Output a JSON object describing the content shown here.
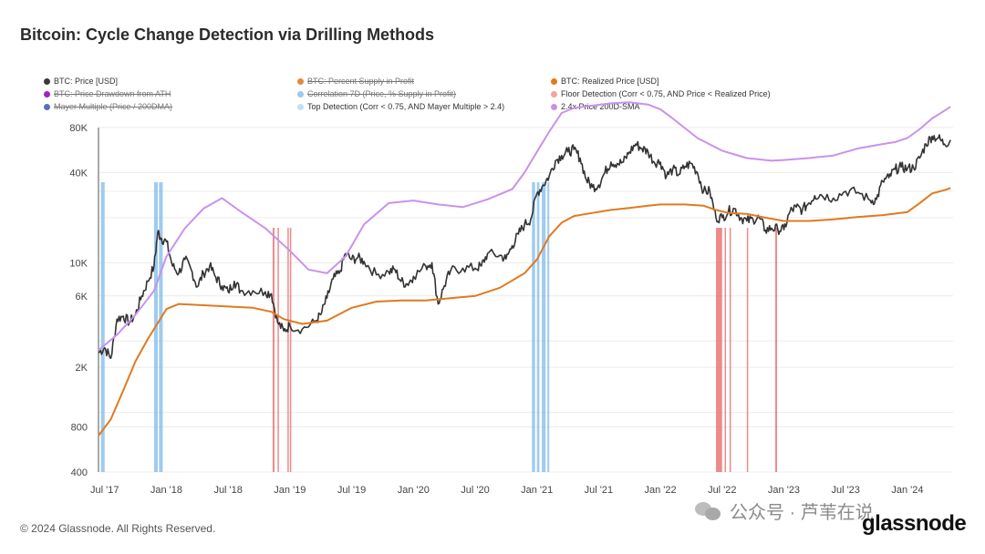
{
  "title": "Bitcoin: Cycle Change Detection via Drilling Methods",
  "footer": "© 2024 Glassnode. All Rights Reserved.",
  "watermark_text": "公众号 · 芦苇在说",
  "brand": "glassnode",
  "legend": [
    {
      "label": "BTC: Price [USD]",
      "color": "#3a3a3a",
      "enabled": true
    },
    {
      "label": "BTC: Percent Supply in Profit",
      "color": "#e08a3a",
      "enabled": false
    },
    {
      "label": "BTC: Realized Price [USD]",
      "color": "#e07a1f",
      "enabled": true
    },
    {
      "label": "BTC: Price Drawdown from ATH",
      "color": "#a020c8",
      "enabled": false
    },
    {
      "label": "Correlation 7D (Price, % Supply in Profit)",
      "color": "#9ec8ee",
      "enabled": false
    },
    {
      "label": "Floor Detection (Corr < 0.75, AND Price < Realized Price)",
      "color": "#f2a3a3",
      "enabled": true
    },
    {
      "label": "Mayer Multiple (Price / 200DMA)",
      "color": "#5b6fbe",
      "enabled": false
    },
    {
      "label": "Top Detection (Corr < 0.75, AND Mayer Multiple > 2.4)",
      "color": "#bfe0f8",
      "enabled": true
    },
    {
      "label": "2.4x Price 200D-SMA",
      "color": "#c793ea",
      "enabled": true
    }
  ],
  "colors": {
    "price": "#333333",
    "realized": "#e07a1f",
    "sma": "#c793ea",
    "top": "#7fb9ea",
    "floor": "#e65a5a",
    "grid": "#ececec"
  },
  "chart_data": {
    "type": "line",
    "title": "Bitcoin: Cycle Change Detection via Drilling Methods",
    "y_scale": "log",
    "ylim": [
      400,
      140000
    ],
    "xlim": [
      "2017-06-15",
      "2024-05-15"
    ],
    "y_ticks": [
      {
        "value": 400,
        "label": "400"
      },
      {
        "value": 800,
        "label": "800"
      },
      {
        "value": 2000,
        "label": "2K"
      },
      {
        "value": 6000,
        "label": "6K"
      },
      {
        "value": 10000,
        "label": "10K"
      },
      {
        "value": 40000,
        "label": "40K"
      },
      {
        "value": 80000,
        "label": "80K"
      }
    ],
    "x_ticks": [
      {
        "t": 2017.5,
        "label": "Jul '17"
      },
      {
        "t": 2018.0,
        "label": "Jan '18"
      },
      {
        "t": 2018.5,
        "label": "Jul '18"
      },
      {
        "t": 2019.0,
        "label": "Jan '19"
      },
      {
        "t": 2019.5,
        "label": "Jul '19"
      },
      {
        "t": 2020.0,
        "label": "Jan '20"
      },
      {
        "t": 2020.5,
        "label": "Jul '20"
      },
      {
        "t": 2021.0,
        "label": "Jan '21"
      },
      {
        "t": 2021.5,
        "label": "Jul '21"
      },
      {
        "t": 2022.0,
        "label": "Jan '22"
      },
      {
        "t": 2022.5,
        "label": "Jul '22"
      },
      {
        "t": 2023.0,
        "label": "Jan '23"
      },
      {
        "t": 2023.5,
        "label": "Jul '23"
      },
      {
        "t": 2024.0,
        "label": "Jan '24"
      }
    ],
    "series": [
      {
        "name": "BTC: Price [USD]",
        "t": [
          2017.45,
          2017.5,
          2017.55,
          2017.6,
          2017.65,
          2017.7,
          2017.75,
          2017.8,
          2017.85,
          2017.9,
          2017.93,
          2017.96,
          2018.0,
          2018.05,
          2018.1,
          2018.15,
          2018.2,
          2018.25,
          2018.3,
          2018.35,
          2018.4,
          2018.45,
          2018.5,
          2018.55,
          2018.6,
          2018.7,
          2018.8,
          2018.85,
          2018.9,
          2018.95,
          2019.0,
          2019.1,
          2019.2,
          2019.25,
          2019.3,
          2019.35,
          2019.4,
          2019.45,
          2019.5,
          2019.55,
          2019.6,
          2019.7,
          2019.8,
          2019.85,
          2019.9,
          2019.95,
          2020.0,
          2020.1,
          2020.15,
          2020.2,
          2020.25,
          2020.3,
          2020.4,
          2020.5,
          2020.55,
          2020.6,
          2020.7,
          2020.75,
          2020.8,
          2020.85,
          2020.9,
          2020.95,
          2021.0,
          2021.05,
          2021.1,
          2021.15,
          2021.2,
          2021.25,
          2021.3,
          2021.35,
          2021.4,
          2021.45,
          2021.5,
          2021.55,
          2021.6,
          2021.65,
          2021.7,
          2021.75,
          2021.8,
          2021.85,
          2021.9,
          2021.95,
          2022.0,
          2022.05,
          2022.1,
          2022.15,
          2022.2,
          2022.25,
          2022.3,
          2022.35,
          2022.4,
          2022.45,
          2022.5,
          2022.55,
          2022.6,
          2022.65,
          2022.7,
          2022.75,
          2022.8,
          2022.85,
          2022.9,
          2022.95,
          2023.0,
          2023.05,
          2023.1,
          2023.15,
          2023.2,
          2023.25,
          2023.3,
          2023.4,
          2023.5,
          2023.6,
          2023.7,
          2023.75,
          2023.8,
          2023.85,
          2023.9,
          2023.95,
          2024.0,
          2024.05,
          2024.1,
          2024.15,
          2024.2,
          2024.25,
          2024.3,
          2024.35
        ],
        "values": [
          2500,
          2700,
          2300,
          4200,
          4400,
          4000,
          4500,
          6000,
          7500,
          9500,
          16000,
          14500,
          13800,
          9500,
          8500,
          10500,
          9000,
          6900,
          8500,
          9500,
          8000,
          7000,
          6400,
          7500,
          6500,
          6500,
          6400,
          6200,
          4000,
          3500,
          3800,
          3600,
          4000,
          4500,
          5800,
          7800,
          8500,
          11500,
          10500,
          10800,
          10200,
          8300,
          8700,
          9000,
          7500,
          7200,
          8100,
          9500,
          10000,
          5300,
          7000,
          8800,
          9200,
          9200,
          9500,
          11500,
          11200,
          10600,
          13000,
          15500,
          18000,
          19500,
          29000,
          33000,
          38000,
          48000,
          52000,
          55000,
          57000,
          50000,
          36000,
          32000,
          33000,
          40000,
          47000,
          46000,
          47000,
          55000,
          62000,
          58000,
          55000,
          47000,
          47000,
          38000,
          42000,
          39000,
          44000,
          46000,
          40000,
          30000,
          30000,
          20000,
          20000,
          22000,
          23000,
          20000,
          19000,
          19500,
          20000,
          16500,
          17000,
          16800,
          16600,
          22000,
          23500,
          22500,
          25000,
          28000,
          28500,
          27000,
          30000,
          29500,
          26000,
          26500,
          35000,
          37000,
          42000,
          43500,
          42500,
          43000,
          50000,
          62000,
          70000,
          68000,
          62000,
          66000
        ]
      },
      {
        "name": "BTC: Realized Price [USD]",
        "t": [
          2017.45,
          2017.55,
          2017.65,
          2017.75,
          2017.85,
          2017.95,
          2018.0,
          2018.1,
          2018.3,
          2018.5,
          2018.7,
          2018.85,
          2018.95,
          2019.1,
          2019.3,
          2019.5,
          2019.7,
          2019.9,
          2020.1,
          2020.3,
          2020.5,
          2020.7,
          2020.9,
          2021.0,
          2021.1,
          2021.2,
          2021.3,
          2021.45,
          2021.6,
          2021.75,
          2021.9,
          2022.0,
          2022.2,
          2022.35,
          2022.45,
          2022.55,
          2022.7,
          2022.85,
          2023.0,
          2023.2,
          2023.4,
          2023.6,
          2023.8,
          2024.0,
          2024.1,
          2024.2,
          2024.3,
          2024.35
        ],
        "values": [
          700,
          900,
          1400,
          2200,
          3100,
          4200,
          4900,
          5300,
          5200,
          5100,
          5000,
          4700,
          4200,
          3900,
          4100,
          5000,
          5500,
          5600,
          5600,
          5800,
          6000,
          6800,
          8500,
          10500,
          15000,
          18500,
          20500,
          21500,
          22500,
          23200,
          24000,
          24500,
          24500,
          24000,
          22500,
          21500,
          21200,
          20000,
          19000,
          19000,
          19500,
          20200,
          20800,
          21800,
          25000,
          29000,
          30500,
          31500
        ]
      },
      {
        "name": "2.4x Price 200D-SMA",
        "t": [
          2017.45,
          2017.6,
          2017.75,
          2017.9,
          2018.0,
          2018.15,
          2018.3,
          2018.45,
          2018.6,
          2018.8,
          2019.0,
          2019.15,
          2019.3,
          2019.45,
          2019.6,
          2019.8,
          2020.0,
          2020.2,
          2020.4,
          2020.6,
          2020.8,
          2020.9,
          2021.0,
          2021.1,
          2021.2,
          2021.3,
          2021.45,
          2021.6,
          2021.75,
          2021.9,
          2022.0,
          2022.1,
          2022.3,
          2022.5,
          2022.7,
          2022.9,
          2023.0,
          2023.2,
          2023.4,
          2023.6,
          2023.8,
          2023.9,
          2024.0,
          2024.1,
          2024.2,
          2024.35
        ],
        "values": [
          2600,
          3300,
          4500,
          6500,
          11000,
          17000,
          23000,
          27000,
          22000,
          17000,
          12000,
          9000,
          8500,
          11000,
          18000,
          25000,
          26000,
          24500,
          23500,
          26500,
          31000,
          40000,
          55000,
          75000,
          100000,
          108000,
          112000,
          116000,
          118000,
          114000,
          106000,
          92000,
          68000,
          56000,
          50000,
          48000,
          48500,
          50000,
          52000,
          58000,
          62000,
          64000,
          68000,
          78000,
          92000,
          110000
        ]
      }
    ],
    "top_detection_bands": [
      [
        2017.47,
        2017.5
      ],
      [
        2017.9,
        2017.93
      ],
      [
        2017.94,
        2017.97
      ],
      [
        2020.96,
        2020.985
      ],
      [
        2021.0,
        2021.02
      ],
      [
        2021.04,
        2021.07
      ],
      [
        2021.085,
        2021.1
      ]
    ],
    "floor_detection_bands": [
      [
        2018.86,
        2018.875
      ],
      [
        2018.9,
        2018.91
      ],
      [
        2018.98,
        2018.99
      ],
      [
        2019.0,
        2019.01
      ],
      [
        2022.45,
        2022.5
      ],
      [
        2022.52,
        2022.53
      ],
      [
        2022.56,
        2022.57
      ],
      [
        2022.7,
        2022.71
      ],
      [
        2022.93,
        2022.945
      ]
    ]
  }
}
